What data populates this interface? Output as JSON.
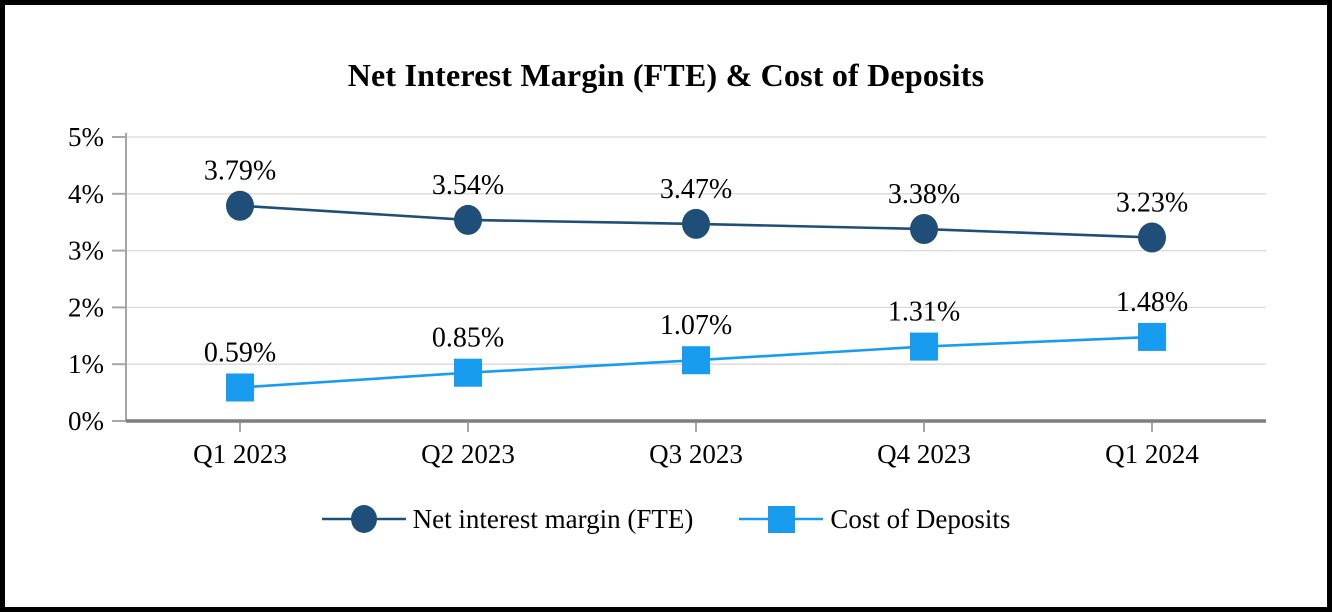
{
  "title": "Net Interest Margin (FTE) & Cost of Deposits",
  "chart_data": {
    "type": "line",
    "categories": [
      "Q1 2023",
      "Q2 2023",
      "Q3 2023",
      "Q4 2023",
      "Q1 2024"
    ],
    "series": [
      {
        "name": "Net interest margin (FTE)",
        "marker": "circle",
        "color": "#1F4E79",
        "values": [
          3.79,
          3.54,
          3.47,
          3.38,
          3.23
        ],
        "point_labels": [
          "3.79%",
          "3.54%",
          "3.47%",
          "3.38%",
          "3.23%"
        ]
      },
      {
        "name": "Cost of Deposits",
        "marker": "square",
        "color": "#189CF0",
        "values": [
          0.59,
          0.85,
          1.07,
          1.31,
          1.48
        ],
        "point_labels": [
          "0.59%",
          "0.85%",
          "1.07%",
          "1.31%",
          "1.48%"
        ]
      }
    ],
    "ylim": [
      0,
      5
    ],
    "yticks": [
      {
        "value": 0,
        "label": "0%"
      },
      {
        "value": 1,
        "label": "1%"
      },
      {
        "value": 2,
        "label": "2%"
      },
      {
        "value": 3,
        "label": "3%"
      },
      {
        "value": 4,
        "label": "4%"
      },
      {
        "value": 5,
        "label": "5%"
      }
    ],
    "grid": true,
    "legend_position": "bottom"
  },
  "colors": {
    "gridline": "#D9D9D9",
    "y_axis": "#A6A6A6",
    "x_axis": "#7F7F7F",
    "tick": "#A6A6A6",
    "text": "#000000",
    "frame_border": "#000000",
    "background": "#FFFFFF"
  }
}
